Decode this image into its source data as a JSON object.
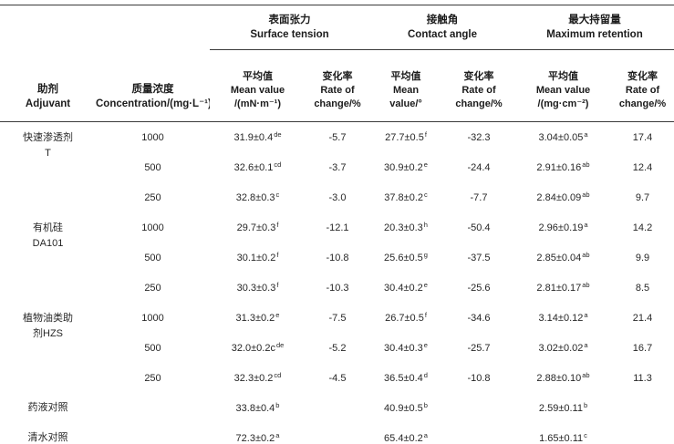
{
  "page": {
    "background_color": "#ffffff",
    "text_color": "#222222",
    "rule_color": "#3a3a3a"
  },
  "table": {
    "groups": [
      {
        "label": "表面张力\nSurface tension"
      },
      {
        "label": "接触角\nContact angle"
      },
      {
        "label": "最大持留量\nMaximum retention"
      }
    ],
    "headers": {
      "adjuvant": "助剂\nAdjuvant",
      "concentration": "质量浓度\nConcentration/(mg·L⁻¹)",
      "st_mean": "平均值\nMean value\n/(mN·m⁻¹)",
      "st_rate": "变化率\nRate of\nchange/%",
      "ca_mean": "平均值\nMean\nvalue/°",
      "ca_rate": "变化率\nRate of\nchange/%",
      "mr_mean": "平均值\nMean value\n/(mg·cm⁻²)",
      "mr_rate": "变化率\nRate of\nchange/%"
    },
    "rows": [
      {
        "adjuvant": "快速渗透剂\nT",
        "span": 3,
        "concentration": "1000",
        "cells": [
          {
            "v": "31.9±0.4",
            "s": "de"
          },
          {
            "v": "-5.7"
          },
          {
            "v": "27.7±0.5",
            "s": "f"
          },
          {
            "v": "-32.3"
          },
          {
            "v": "3.04±0.05",
            "s": "a"
          },
          {
            "v": "17.4"
          }
        ]
      },
      {
        "concentration": "500",
        "cells": [
          {
            "v": "32.6±0.1",
            "s": "cd"
          },
          {
            "v": "-3.7"
          },
          {
            "v": "30.9±0.2",
            "s": "e"
          },
          {
            "v": "-24.4"
          },
          {
            "v": "2.91±0.16",
            "s": "ab"
          },
          {
            "v": "12.4"
          }
        ]
      },
      {
        "concentration": "250",
        "cells": [
          {
            "v": "32.8±0.3",
            "s": "c"
          },
          {
            "v": "-3.0"
          },
          {
            "v": "37.8±0.2",
            "s": "c"
          },
          {
            "v": "-7.7"
          },
          {
            "v": "2.84±0.09",
            "s": "ab"
          },
          {
            "v": "9.7"
          }
        ]
      },
      {
        "adjuvant": "有机硅\nDA101",
        "span": 3,
        "concentration": "1000",
        "cells": [
          {
            "v": "29.7±0.3",
            "s": "f"
          },
          {
            "v": "-12.1"
          },
          {
            "v": "20.3±0.3",
            "s": "h"
          },
          {
            "v": "-50.4"
          },
          {
            "v": "2.96±0.19",
            "s": "a"
          },
          {
            "v": "14.2"
          }
        ]
      },
      {
        "concentration": "500",
        "cells": [
          {
            "v": "30.1±0.2",
            "s": "f"
          },
          {
            "v": "-10.8"
          },
          {
            "v": "25.6±0.5",
            "s": "g"
          },
          {
            "v": "-37.5"
          },
          {
            "v": "2.85±0.04",
            "s": "ab"
          },
          {
            "v": "9.9"
          }
        ]
      },
      {
        "concentration": "250",
        "cells": [
          {
            "v": "30.3±0.3",
            "s": "f"
          },
          {
            "v": "-10.3"
          },
          {
            "v": "30.4±0.2",
            "s": "e"
          },
          {
            "v": "-25.6"
          },
          {
            "v": "2.81±0.17",
            "s": "ab"
          },
          {
            "v": "8.5"
          }
        ]
      },
      {
        "adjuvant": "植物油类助\n剂HZS",
        "span": 3,
        "concentration": "1000",
        "cells": [
          {
            "v": "31.3±0.2",
            "s": "e"
          },
          {
            "v": "-7.5"
          },
          {
            "v": "26.7±0.5",
            "s": "f"
          },
          {
            "v": "-34.6"
          },
          {
            "v": "3.14±0.12",
            "s": "a"
          },
          {
            "v": "21.4"
          }
        ]
      },
      {
        "concentration": "500",
        "cells": [
          {
            "v": "32.0±0.2c",
            "s": "de"
          },
          {
            "v": "-5.2"
          },
          {
            "v": "30.4±0.3",
            "s": "e"
          },
          {
            "v": "-25.7"
          },
          {
            "v": "3.02±0.02",
            "s": "a"
          },
          {
            "v": "16.7"
          }
        ]
      },
      {
        "concentration": "250",
        "cells": [
          {
            "v": "32.3±0.2",
            "s": "cd"
          },
          {
            "v": "-4.5"
          },
          {
            "v": "36.5±0.4",
            "s": "d"
          },
          {
            "v": "-10.8"
          },
          {
            "v": "2.88±0.10",
            "s": "ab"
          },
          {
            "v": "11.3"
          }
        ]
      },
      {
        "adjuvant": "药液对照",
        "span": 1,
        "concentration": "",
        "cells": [
          {
            "v": "33.8±0.4",
            "s": "b"
          },
          {
            "v": ""
          },
          {
            "v": "40.9±0.5",
            "s": "b"
          },
          {
            "v": ""
          },
          {
            "v": "2.59±0.11",
            "s": "b"
          },
          {
            "v": ""
          }
        ]
      },
      {
        "adjuvant": "清水对照",
        "span": 1,
        "concentration": "",
        "cells": [
          {
            "v": "72.3±0.2",
            "s": "a"
          },
          {
            "v": ""
          },
          {
            "v": "65.4±0.2",
            "s": "a"
          },
          {
            "v": ""
          },
          {
            "v": "1.65±0.11",
            "s": "c"
          },
          {
            "v": ""
          }
        ]
      }
    ]
  }
}
